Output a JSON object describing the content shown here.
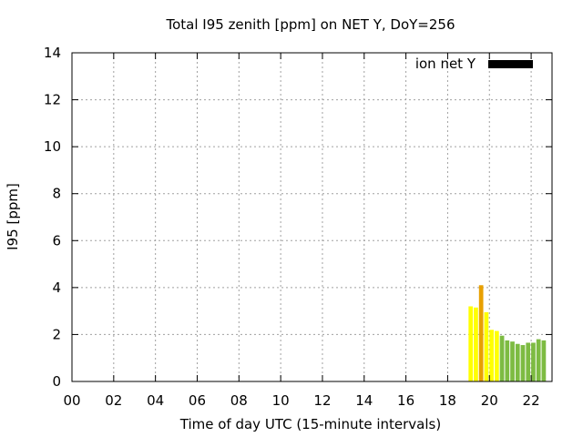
{
  "chart_data": {
    "type": "bar",
    "title": "Total I95 zenith [ppm] on NET Y, DoY=256",
    "xlabel": "Time of day UTC (15-minute intervals)",
    "ylabel": "I95 [ppm]",
    "xlim": [
      0,
      23
    ],
    "ylim": [
      0,
      14
    ],
    "x_ticks": [
      0,
      2,
      4,
      6,
      8,
      10,
      12,
      14,
      16,
      18,
      20,
      22
    ],
    "x_tick_labels": [
      "00",
      "02",
      "04",
      "06",
      "08",
      "10",
      "12",
      "14",
      "16",
      "18",
      "20",
      "22"
    ],
    "y_ticks": [
      0,
      2,
      4,
      6,
      8,
      10,
      12,
      14
    ],
    "y_tick_labels": [
      "0",
      "2",
      "4",
      "6",
      "8",
      "10",
      "12",
      "14"
    ],
    "grid": true,
    "legend_position": "top-right",
    "bar_width_hours": 0.25,
    "series": [
      {
        "name": "ion net Y",
        "legend_color": "#000000",
        "points": [
          {
            "x": 19.0,
            "y": 3.2,
            "color": "#ffff00"
          },
          {
            "x": 19.25,
            "y": 3.15,
            "color": "#ffff00"
          },
          {
            "x": 19.5,
            "y": 4.1,
            "color": "#e8a000"
          },
          {
            "x": 19.75,
            "y": 2.95,
            "color": "#ffff00"
          },
          {
            "x": 20.0,
            "y": 2.2,
            "color": "#ffff00"
          },
          {
            "x": 20.25,
            "y": 2.15,
            "color": "#ffff00"
          },
          {
            "x": 20.5,
            "y": 1.95,
            "color": "#7dbb42"
          },
          {
            "x": 20.75,
            "y": 1.75,
            "color": "#7dbb42"
          },
          {
            "x": 21.0,
            "y": 1.7,
            "color": "#7dbb42"
          },
          {
            "x": 21.25,
            "y": 1.6,
            "color": "#7dbb42"
          },
          {
            "x": 21.5,
            "y": 1.55,
            "color": "#7dbb42"
          },
          {
            "x": 21.75,
            "y": 1.65,
            "color": "#7dbb42"
          },
          {
            "x": 22.0,
            "y": 1.65,
            "color": "#7dbb42"
          },
          {
            "x": 22.25,
            "y": 1.8,
            "color": "#7dbb42"
          },
          {
            "x": 22.5,
            "y": 1.75,
            "color": "#7dbb42"
          }
        ]
      }
    ]
  }
}
